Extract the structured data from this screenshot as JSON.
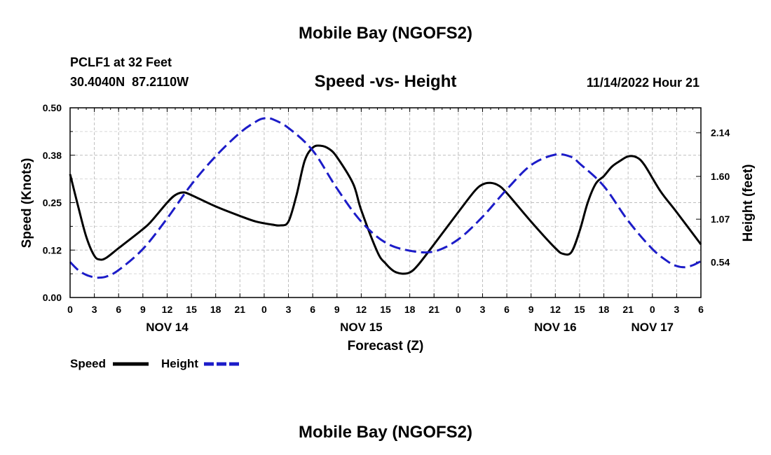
{
  "header": {
    "title": "Mobile Bay (NGOFS2)",
    "station": "PCLF1 at 32 Feet",
    "coords": "30.4040N  87.2110W",
    "subtitle": "Speed -vs- Height",
    "timestamp": "11/14/2022 Hour 21"
  },
  "footer": {
    "title": "Mobile Bay (NGOFS2)"
  },
  "chart_data": {
    "type": "line",
    "title": "Speed -vs- Height",
    "xlabel": "Forecast (Z)",
    "ylabel_left": "Speed (Knots)",
    "ylabel_right": "Height (feet)",
    "x_range_hours": [
      0,
      78
    ],
    "ylim_left": [
      0,
      0.5
    ],
    "ylim_right": [
      0.1,
      2.45
    ],
    "left_ticks": [
      {
        "value": 0.0,
        "label": "0.00"
      },
      {
        "value": 0.125,
        "label": "0.12"
      },
      {
        "value": 0.25,
        "label": "0.25"
      },
      {
        "value": 0.375,
        "label": "0.38"
      },
      {
        "value": 0.5,
        "label": "0.50"
      }
    ],
    "right_ticks": [
      {
        "value": 0.54,
        "label": "0.54"
      },
      {
        "value": 1.07,
        "label": "1.07"
      },
      {
        "value": 1.6,
        "label": "1.60"
      },
      {
        "value": 2.14,
        "label": "2.14"
      }
    ],
    "x_ticks": [
      {
        "hour": 0,
        "label": "0"
      },
      {
        "hour": 3,
        "label": "3"
      },
      {
        "hour": 6,
        "label": "6"
      },
      {
        "hour": 9,
        "label": "9"
      },
      {
        "hour": 12,
        "label": "12"
      },
      {
        "hour": 15,
        "label": "15"
      },
      {
        "hour": 18,
        "label": "18"
      },
      {
        "hour": 21,
        "label": "21"
      },
      {
        "hour": 24,
        "label": "0"
      },
      {
        "hour": 27,
        "label": "3"
      },
      {
        "hour": 30,
        "label": "6"
      },
      {
        "hour": 33,
        "label": "9"
      },
      {
        "hour": 36,
        "label": "12"
      },
      {
        "hour": 39,
        "label": "15"
      },
      {
        "hour": 42,
        "label": "18"
      },
      {
        "hour": 45,
        "label": "21"
      },
      {
        "hour": 48,
        "label": "0"
      },
      {
        "hour": 51,
        "label": "3"
      },
      {
        "hour": 54,
        "label": "6"
      },
      {
        "hour": 57,
        "label": "9"
      },
      {
        "hour": 60,
        "label": "12"
      },
      {
        "hour": 63,
        "label": "15"
      },
      {
        "hour": 66,
        "label": "18"
      },
      {
        "hour": 69,
        "label": "21"
      },
      {
        "hour": 72,
        "label": "0"
      },
      {
        "hour": 75,
        "label": "3"
      },
      {
        "hour": 78,
        "label": "6"
      }
    ],
    "day_labels": [
      {
        "hour": 12,
        "label": "NOV 14"
      },
      {
        "hour": 36,
        "label": "NOV 15"
      },
      {
        "hour": 60,
        "label": "NOV 16"
      },
      {
        "hour": 72,
        "label": "NOV 17"
      }
    ],
    "series": [
      {
        "name": "Speed",
        "axis": "left",
        "color": "#000000",
        "dash": "solid",
        "points": [
          [
            0,
            0.325
          ],
          [
            1,
            0.24
          ],
          [
            2,
            0.16
          ],
          [
            3,
            0.11
          ],
          [
            3.7,
            0.1
          ],
          [
            4.5,
            0.105
          ],
          [
            6,
            0.13
          ],
          [
            9,
            0.18
          ],
          [
            10,
            0.2
          ],
          [
            12,
            0.25
          ],
          [
            13,
            0.27
          ],
          [
            14,
            0.277
          ],
          [
            15,
            0.27
          ],
          [
            18,
            0.24
          ],
          [
            21,
            0.215
          ],
          [
            23,
            0.2
          ],
          [
            25,
            0.192
          ],
          [
            26,
            0.19
          ],
          [
            27,
            0.2
          ],
          [
            28,
            0.27
          ],
          [
            29,
            0.36
          ],
          [
            30,
            0.395
          ],
          [
            31,
            0.4
          ],
          [
            32,
            0.392
          ],
          [
            33,
            0.37
          ],
          [
            35,
            0.3
          ],
          [
            36,
            0.23
          ],
          [
            38,
            0.12
          ],
          [
            39,
            0.09
          ],
          [
            40,
            0.07
          ],
          [
            41,
            0.063
          ],
          [
            42,
            0.066
          ],
          [
            43,
            0.085
          ],
          [
            45,
            0.14
          ],
          [
            48,
            0.225
          ],
          [
            50,
            0.28
          ],
          [
            51,
            0.298
          ],
          [
            52,
            0.302
          ],
          [
            53,
            0.295
          ],
          [
            54,
            0.275
          ],
          [
            57,
            0.2
          ],
          [
            60,
            0.13
          ],
          [
            61,
            0.115
          ],
          [
            62,
            0.12
          ],
          [
            63,
            0.175
          ],
          [
            64,
            0.25
          ],
          [
            65,
            0.3
          ],
          [
            66,
            0.32
          ],
          [
            67,
            0.345
          ],
          [
            68,
            0.36
          ],
          [
            69,
            0.372
          ],
          [
            70,
            0.37
          ],
          [
            71,
            0.35
          ],
          [
            73,
            0.28
          ],
          [
            75,
            0.225
          ],
          [
            78,
            0.14
          ]
        ]
      },
      {
        "name": "Height",
        "axis": "right",
        "color": "#1c1cc8",
        "dash": "dashed",
        "points": [
          [
            0,
            0.54
          ],
          [
            1,
            0.44
          ],
          [
            2,
            0.38
          ],
          [
            3,
            0.35
          ],
          [
            3.5,
            0.345
          ],
          [
            4.5,
            0.36
          ],
          [
            6,
            0.44
          ],
          [
            9,
            0.7
          ],
          [
            12,
            1.08
          ],
          [
            15,
            1.5
          ],
          [
            18,
            1.85
          ],
          [
            21,
            2.14
          ],
          [
            23,
            2.28
          ],
          [
            24,
            2.32
          ],
          [
            25,
            2.31
          ],
          [
            27,
            2.2
          ],
          [
            30,
            1.92
          ],
          [
            33,
            1.45
          ],
          [
            36,
            1.04
          ],
          [
            39,
            0.78
          ],
          [
            42,
            0.68
          ],
          [
            45,
            0.67
          ],
          [
            48,
            0.82
          ],
          [
            51,
            1.1
          ],
          [
            54,
            1.44
          ],
          [
            57,
            1.74
          ],
          [
            60,
            1.87
          ],
          [
            62,
            1.84
          ],
          [
            63,
            1.76
          ],
          [
            66,
            1.48
          ],
          [
            69,
            1.05
          ],
          [
            72,
            0.7
          ],
          [
            74,
            0.54
          ],
          [
            75,
            0.49
          ],
          [
            76,
            0.475
          ],
          [
            77,
            0.5
          ],
          [
            78,
            0.55
          ]
        ]
      }
    ]
  },
  "legend": {
    "speed_label": "Speed",
    "height_label": "Height",
    "speed_color": "#000000",
    "height_color": "#1c1cc8"
  }
}
